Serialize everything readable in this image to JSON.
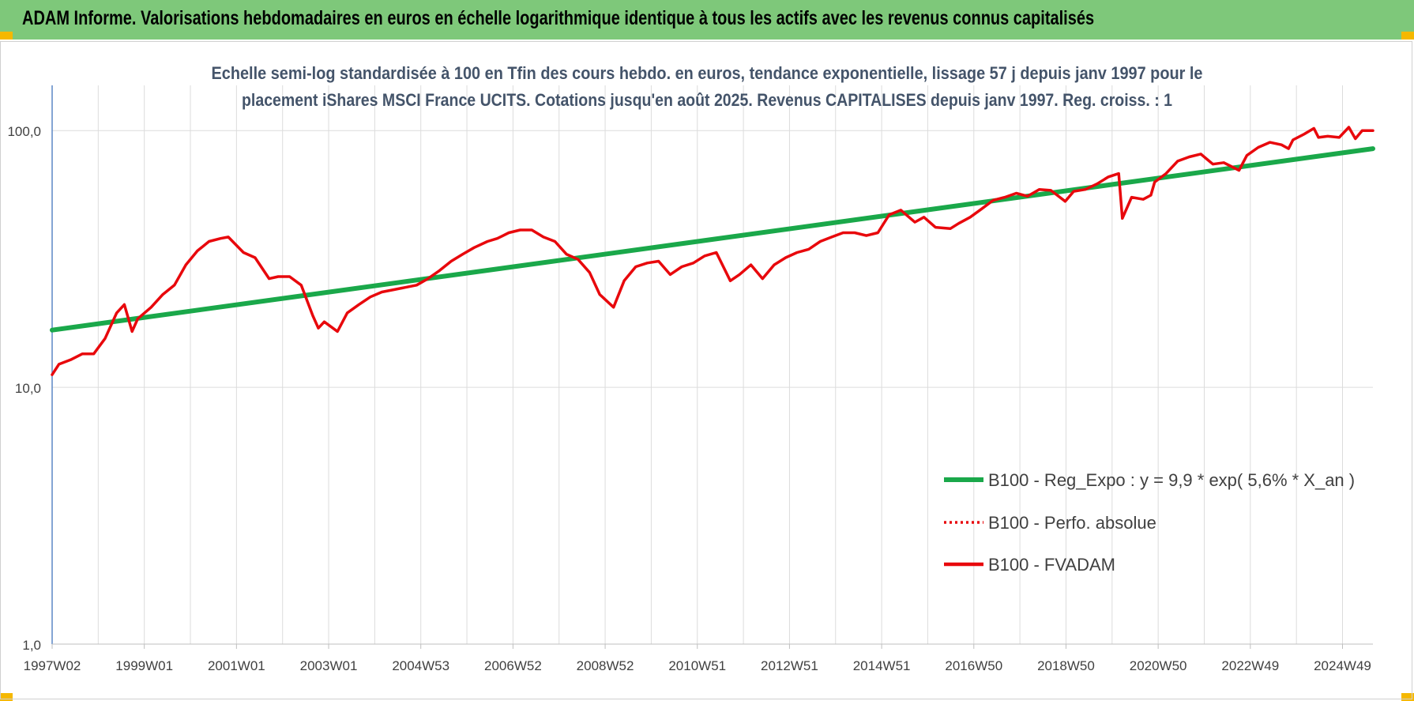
{
  "header": {
    "title": "ADAM Informe. Valorisations hebdomadaires en euros en échelle logarithmique identique à tous les actifs avec les revenus connus capitalisés"
  },
  "colors": {
    "banner": "#7ec87a",
    "corner_accent": "#f5b800",
    "trend": "#1aa84a",
    "fvadam": "#e8080c",
    "title_text": "#44546a",
    "grid": "#dcdcdc"
  },
  "chart_data": {
    "type": "line",
    "title_lines": [
      "Echelle semi-log standardisée à 100 en Tfin des cours hebdo. en euros, tendance exponentielle, lissage 57 j depuis janv 1997 pour le",
      "placement iShares MSCI France UCITS. Cotations jusqu'en août 2025. Revenus CAPITALISES depuis janv 1997. Reg. croiss. : 1"
    ],
    "y_scale": "log",
    "ylim": [
      1,
      150
    ],
    "y_ticks": [
      1,
      10,
      100
    ],
    "y_tick_labels": [
      "1,0",
      "10,0",
      "100,0"
    ],
    "x_range": [
      "1997-01-06",
      "2025-08-25"
    ],
    "x_tick_labels": [
      "1997W02",
      "1999W01",
      "2001W01",
      "2003W01",
      "2004W53",
      "2006W52",
      "2008W52",
      "2010W51",
      "2012W51",
      "2014W51",
      "2016W50",
      "2018W50",
      "2020W50",
      "2022W49",
      "2024W49"
    ],
    "grid": "vertical and horizontal",
    "legend_position": "lower-right",
    "series": [
      {
        "name": "B100 - Reg_Expo : y = 9,9 * exp( 5,6% *  X_an )",
        "style": "solid",
        "color": "#1aa84a",
        "x": [
          "1997-01-06",
          "2025-08-25"
        ],
        "values": [
          16.7,
          85.0
        ]
      },
      {
        "name": "B100 - Perfo. absolue",
        "style": "dotted",
        "color": "#e8080c",
        "x": [],
        "values": []
      },
      {
        "name": "B100 - FVADAM",
        "style": "solid",
        "color": "#e8080c",
        "x": [
          "1997-01-06",
          "1997-03-01",
          "1997-06-01",
          "1997-09-01",
          "1997-12-01",
          "1998-03-01",
          "1998-06-01",
          "1998-08-01",
          "1998-10-01",
          "1998-11-15",
          "1999-03-01",
          "1999-06-01",
          "1999-09-01",
          "1999-12-01",
          "2000-03-01",
          "2000-06-01",
          "2000-09-01",
          "2000-11-01",
          "2001-03-01",
          "2001-06-01",
          "2001-09-20",
          "2001-12-01",
          "2002-03-01",
          "2002-06-01",
          "2002-09-01",
          "2002-10-15",
          "2002-12-01",
          "2003-03-15",
          "2003-06-01",
          "2003-09-01",
          "2003-12-01",
          "2004-03-01",
          "2004-06-01",
          "2004-09-01",
          "2004-12-01",
          "2005-03-01",
          "2005-06-01",
          "2005-09-01",
          "2005-12-01",
          "2006-03-01",
          "2006-06-15",
          "2006-09-01",
          "2006-12-01",
          "2007-03-01",
          "2007-06-01",
          "2007-09-01",
          "2007-12-01",
          "2008-03-01",
          "2008-06-01",
          "2008-09-01",
          "2008-11-20",
          "2009-03-09",
          "2009-06-01",
          "2009-09-01",
          "2009-12-01",
          "2010-03-01",
          "2010-06-01",
          "2010-09-01",
          "2010-12-01",
          "2011-03-01",
          "2011-06-01",
          "2011-09-20",
          "2011-12-01",
          "2012-03-01",
          "2012-06-01",
          "2012-09-01",
          "2012-12-01",
          "2013-03-01",
          "2013-06-01",
          "2013-09-01",
          "2013-12-01",
          "2014-03-01",
          "2014-06-01",
          "2014-09-01",
          "2014-12-01",
          "2015-03-01",
          "2015-06-01",
          "2015-09-20",
          "2015-12-01",
          "2016-03-01",
          "2016-06-27",
          "2016-09-01",
          "2016-12-01",
          "2017-03-01",
          "2017-06-01",
          "2017-09-01",
          "2017-12-01",
          "2018-03-01",
          "2018-06-01",
          "2018-09-01",
          "2018-12-24",
          "2019-03-01",
          "2019-06-01",
          "2019-09-01",
          "2019-12-01",
          "2020-02-20",
          "2020-03-20",
          "2020-06-01",
          "2020-09-01",
          "2020-11-01",
          "2020-12-01",
          "2021-03-01",
          "2021-06-01",
          "2021-09-01",
          "2021-12-01",
          "2022-03-07",
          "2022-06-01",
          "2022-09-30",
          "2022-12-01",
          "2023-03-01",
          "2023-06-01",
          "2023-09-01",
          "2023-10-27",
          "2023-12-01",
          "2024-03-01",
          "2024-05-15",
          "2024-06-20",
          "2024-09-01",
          "2024-12-01",
          "2025-02-15",
          "2025-04-08",
          "2025-06-01",
          "2025-08-25"
        ],
        "values": [
          11.2,
          12.3,
          12.8,
          13.5,
          13.5,
          15.5,
          19.5,
          21.0,
          16.5,
          18.5,
          20.5,
          23.0,
          25.0,
          30.0,
          34.0,
          37.0,
          38.0,
          38.5,
          33.5,
          32.0,
          26.5,
          27.0,
          27.0,
          25.0,
          19.0,
          17.0,
          18.0,
          16.5,
          19.5,
          21.0,
          22.5,
          23.5,
          24.0,
          24.5,
          25.0,
          26.5,
          28.5,
          31.0,
          33.0,
          35.0,
          37.0,
          38.0,
          40.0,
          41.0,
          41.0,
          38.5,
          37.0,
          33.0,
          31.5,
          28.0,
          23.0,
          20.5,
          26.0,
          29.5,
          30.5,
          31.0,
          27.5,
          29.5,
          30.5,
          32.5,
          33.5,
          26.0,
          27.5,
          30.0,
          26.5,
          30.0,
          32.0,
          33.5,
          34.5,
          37.0,
          38.5,
          40.0,
          40.0,
          39.0,
          40.0,
          47.0,
          49.0,
          44.0,
          46.0,
          42.0,
          41.5,
          43.5,
          46.0,
          49.5,
          53.5,
          55.0,
          57.0,
          55.5,
          59.0,
          58.5,
          53.0,
          58.0,
          59.0,
          62.0,
          66.0,
          68.0,
          45.5,
          55.0,
          54.0,
          56.0,
          63.0,
          68.0,
          76.0,
          79.0,
          81.0,
          74.0,
          75.0,
          70.0,
          80.0,
          86.0,
          90.0,
          88.0,
          85.0,
          92.0,
          97.0,
          102.0,
          94.0,
          95.0,
          94.0,
          103.0,
          93.0,
          100.0,
          100.0
        ]
      }
    ]
  }
}
